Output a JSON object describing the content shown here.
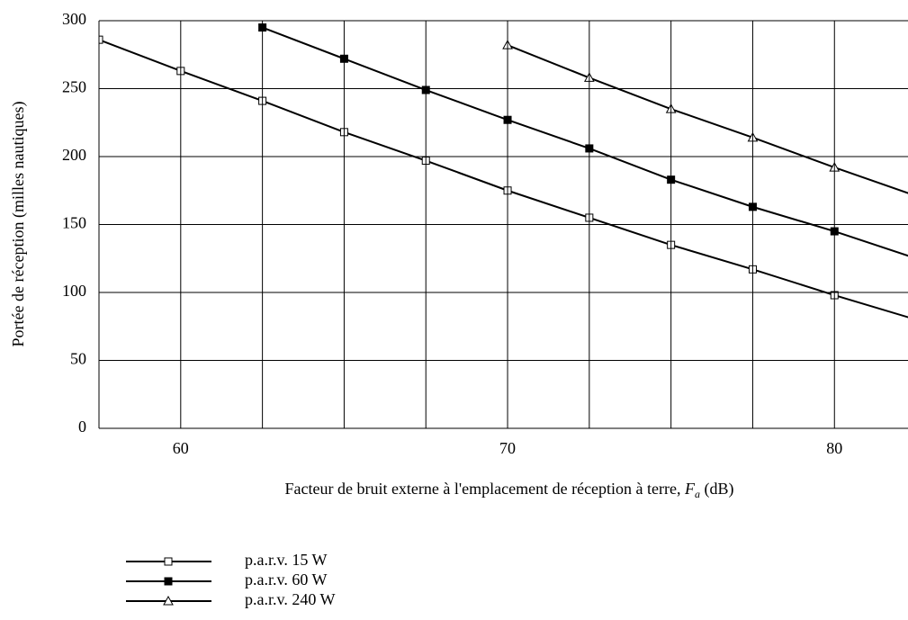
{
  "chart_data": {
    "type": "line",
    "ylabel": "Portée de réception (milles nautiques)",
    "xlabel_parts": [
      "Facteur de bruit externe à l'emplacement de réception à terre, ",
      "F",
      "a",
      " (dB)"
    ],
    "x": [
      57.5,
      60,
      62.5,
      65,
      67.5,
      70,
      72.5,
      75,
      77.5,
      80,
      82.5
    ],
    "series": [
      {
        "name": "p.a.r.v. 15 W",
        "color": "#000000",
        "marker": "square-open",
        "values": [
          286,
          263,
          241,
          218,
          197,
          175,
          155,
          135,
          117,
          98,
          80
        ]
      },
      {
        "name": "p.a.r.v. 60 W",
        "color": "#000000",
        "marker": "square-filled",
        "values": [
          null,
          null,
          295,
          272,
          249,
          227,
          206,
          183,
          163,
          145,
          125
        ]
      },
      {
        "name": "p.a.r.v. 240 W",
        "color": "#000000",
        "marker": "triangle-open",
        "values": [
          null,
          null,
          null,
          null,
          null,
          282,
          258,
          235,
          214,
          192,
          171
        ]
      }
    ],
    "xlim": [
      57.5,
      82.25
    ],
    "xticks": [
      60,
      70,
      80
    ],
    "xminor_ticks": [
      62.5,
      65,
      67.5,
      72.5,
      75,
      77.5
    ],
    "ylim": [
      0,
      300
    ],
    "yticks": [
      0,
      50,
      100,
      150,
      200,
      250,
      300
    ],
    "grid": true
  }
}
